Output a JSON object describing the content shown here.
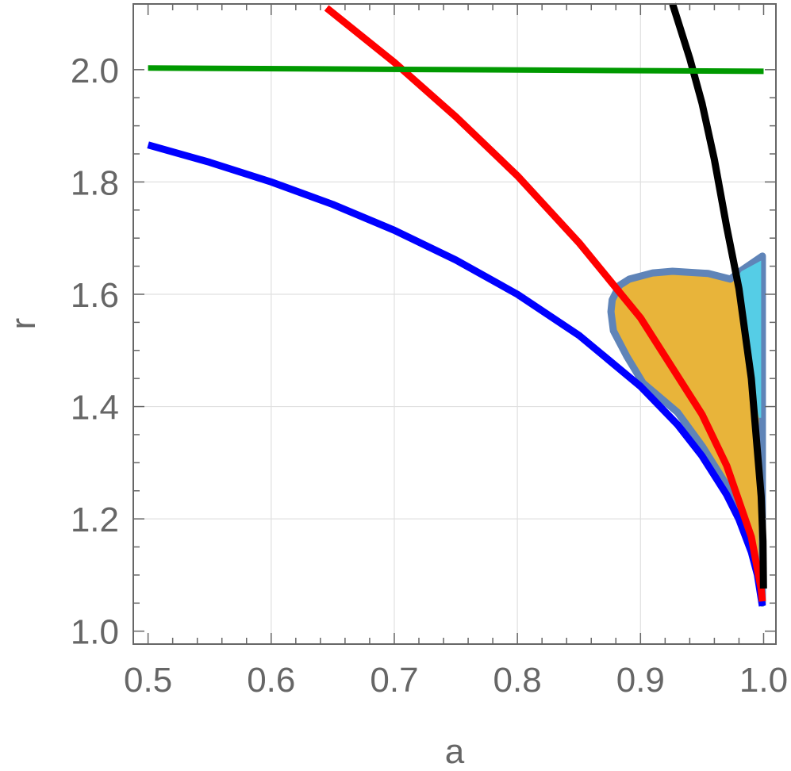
{
  "chart_data": {
    "type": "line",
    "title": "",
    "xlabel": "a",
    "ylabel": "r",
    "xlim": [
      0.488,
      1.01
    ],
    "ylim": [
      0.977,
      2.117
    ],
    "x_ticks": [
      "0.5",
      "0.6",
      "0.7",
      "0.8",
      "0.9",
      "1.0"
    ],
    "y_ticks": [
      "1.0",
      "1.2",
      "1.4",
      "1.6",
      "1.8",
      "2.0"
    ],
    "grid": true,
    "legend": "none",
    "series": [
      {
        "color": "#0000ff",
        "points": [
          [
            0.5,
            1.866
          ],
          [
            0.55,
            1.835
          ],
          [
            0.6,
            1.8
          ],
          [
            0.65,
            1.76
          ],
          [
            0.7,
            1.714
          ],
          [
            0.75,
            1.661
          ],
          [
            0.8,
            1.6
          ],
          [
            0.85,
            1.527
          ],
          [
            0.9,
            1.436
          ],
          [
            0.93,
            1.368
          ],
          [
            0.95,
            1.312
          ],
          [
            0.97,
            1.243
          ],
          [
            0.98,
            1.199
          ],
          [
            0.99,
            1.141
          ],
          [
            0.995,
            1.1
          ],
          [
            0.999,
            1.045
          ]
        ]
      },
      {
        "color": "#ff0000",
        "points": [
          [
            0.645,
            2.11
          ],
          [
            0.7,
            2.013
          ],
          [
            0.75,
            1.916
          ],
          [
            0.8,
            1.811
          ],
          [
            0.85,
            1.692
          ],
          [
            0.9,
            1.558
          ],
          [
            0.95,
            1.386
          ],
          [
            0.97,
            1.295
          ],
          [
            0.99,
            1.168
          ],
          [
            0.998,
            1.075
          ],
          [
            0.999,
            1.053
          ]
        ]
      },
      {
        "color": "#000000",
        "points": [
          [
            0.926,
            2.117
          ],
          [
            0.94,
            2.02
          ],
          [
            0.95,
            1.94
          ],
          [
            0.96,
            1.84
          ],
          [
            0.97,
            1.72
          ],
          [
            0.98,
            1.61
          ],
          [
            0.99,
            1.45
          ],
          [
            0.995,
            1.32
          ],
          [
            0.998,
            1.24
          ],
          [
            0.9995,
            1.16
          ],
          [
            0.9999,
            1.076
          ]
        ]
      },
      {
        "color": "#009900",
        "points": [
          [
            0.5,
            2.003
          ],
          [
            1.0,
            1.997
          ]
        ]
      }
    ],
    "regions": [
      {
        "fill": "#e8b43a",
        "stroke": "#5f84b8",
        "points": [
          [
            0.999,
            1.668
          ],
          [
            0.999,
            1.05
          ],
          [
            0.997,
            1.08
          ],
          [
            0.99,
            1.16
          ],
          [
            0.97,
            1.26
          ],
          [
            0.95,
            1.33
          ],
          [
            0.93,
            1.39
          ],
          [
            0.902,
            1.442
          ],
          [
            0.889,
            1.489
          ],
          [
            0.878,
            1.535
          ],
          [
            0.876,
            1.569
          ],
          [
            0.877,
            1.59
          ],
          [
            0.883,
            1.616
          ],
          [
            0.891,
            1.627
          ],
          [
            0.91,
            1.638
          ],
          [
            0.926,
            1.641
          ],
          [
            0.955,
            1.637
          ],
          [
            0.973,
            1.627
          ],
          [
            0.981,
            1.641
          ]
        ]
      },
      {
        "fill": "#55cde6",
        "stroke": "none",
        "points": [
          [
            0.977,
            1.625
          ],
          [
            0.982,
            1.641
          ],
          [
            0.998,
            1.66
          ],
          [
            0.998,
            1.38
          ],
          [
            0.996,
            1.38
          ],
          [
            0.99,
            1.46
          ],
          [
            0.983,
            1.56
          ]
        ]
      }
    ]
  }
}
